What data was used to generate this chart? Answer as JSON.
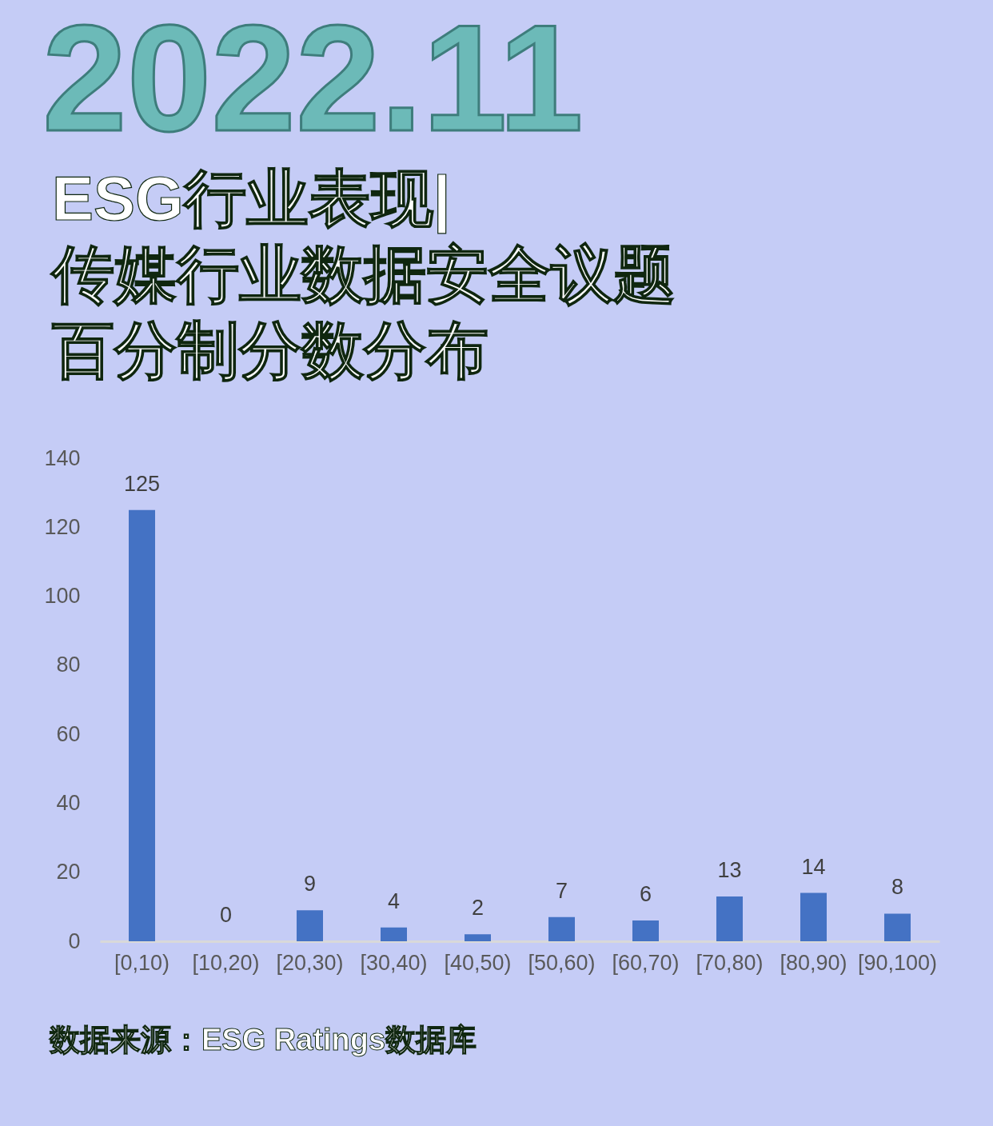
{
  "chart_data": {
    "type": "bar",
    "title": "ESG行业表现|\n传媒行业数据安全议题百分制分数分布",
    "categories": [
      "[0,10)",
      "[10,20)",
      "[20,30)",
      "[30,40)",
      "[40,50)",
      "[50,60)",
      "[60,70)",
      "[70,80)",
      "[80,90)",
      "[90,100)"
    ],
    "values": [
      125,
      0,
      9,
      4,
      2,
      7,
      6,
      13,
      14,
      8
    ],
    "color": "#4472c4",
    "ylim": [
      0,
      140
    ],
    "yticks": [
      0,
      20,
      40,
      60,
      80,
      100,
      120,
      140
    ],
    "data_labels": true,
    "annotations": [
      "2022.11",
      "数据来源：ESG Ratings数据库"
    ]
  }
}
